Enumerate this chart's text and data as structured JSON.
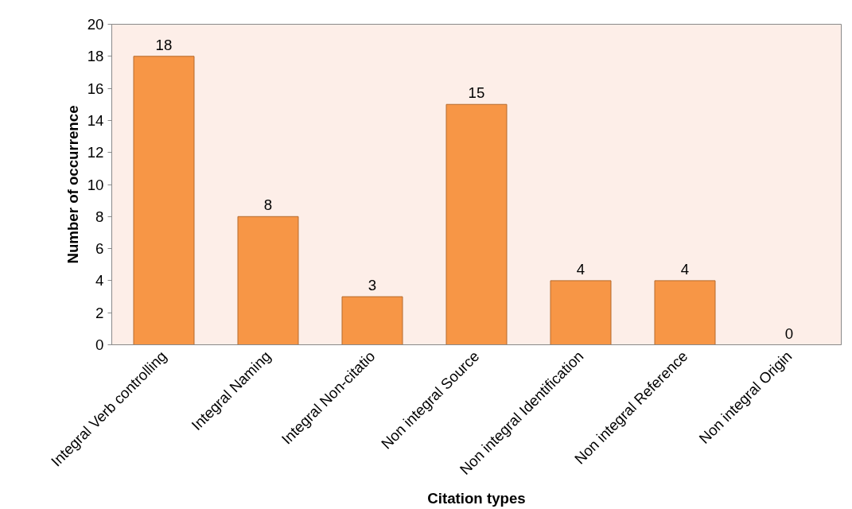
{
  "chart_data": {
    "type": "bar",
    "xlabel": "Citation types",
    "ylabel": "Number of occurrence",
    "categories": [
      "Integral Verb controlling",
      "Integral Naming",
      "Integral Non-citatio",
      "Non integral Source",
      "Non integral Identification",
      "Non integral Reference",
      "Non integral Origin"
    ],
    "values": [
      18,
      8,
      3,
      15,
      4,
      4,
      0
    ],
    "color": "#f79646",
    "ylim": [
      0,
      20
    ],
    "yticks": [
      0,
      2,
      4,
      6,
      8,
      10,
      12,
      14,
      16,
      18,
      20
    ],
    "data_labels": true
  }
}
